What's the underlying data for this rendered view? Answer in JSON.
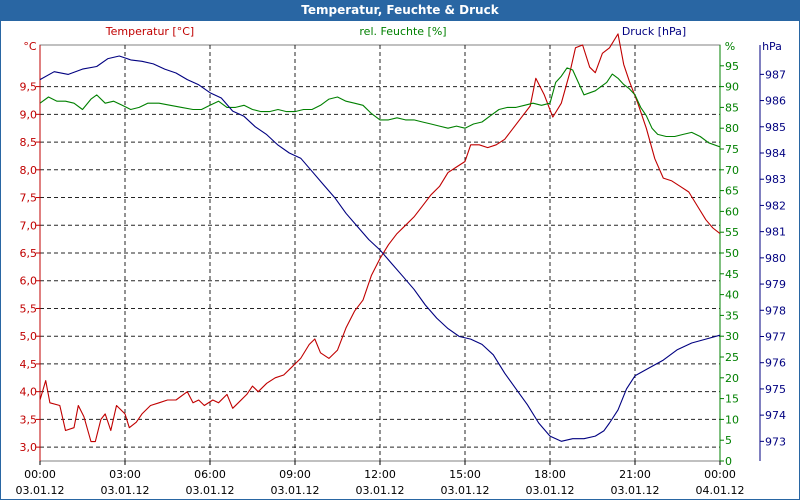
{
  "window_title": "Temperatur, Feuchte & Druck",
  "colors": {
    "temp": "#c00000",
    "hum": "#008000",
    "press": "#000080",
    "title_bg": "#2966a3"
  },
  "chart_data": {
    "type": "line",
    "title": "Temperatur, Feuchte & Druck",
    "axes": {
      "temp": {
        "label": "Temperatur [°C]",
        "unit": "°C",
        "ticks": [
          "3,0",
          "3,5",
          "4,0",
          "4,5",
          "5,0",
          "5,5",
          "6,0",
          "6,5",
          "7,0",
          "7,5",
          "8,0",
          "8,5",
          "9,0",
          "9,5"
        ],
        "range": [
          2.75,
          10.25
        ]
      },
      "hum": {
        "label": "rel. Feuchte [%]",
        "unit": "%",
        "ticks": [
          "0",
          "5",
          "10",
          "15",
          "20",
          "25",
          "30",
          "35",
          "40",
          "45",
          "50",
          "55",
          "60",
          "65",
          "70",
          "75",
          "80",
          "85",
          "90",
          "95"
        ],
        "range": [
          0,
          100
        ]
      },
      "press": {
        "label": "Druck [hPa]",
        "unit": "hPa",
        "ticks": [
          "973",
          "974",
          "975",
          "976",
          "977",
          "978",
          "979",
          "980",
          "981",
          "982",
          "983",
          "984",
          "985",
          "986",
          "987"
        ],
        "range": [
          972.25,
          988.12
        ]
      }
    },
    "x_ticks": [
      {
        "time": "00:00",
        "date": "03.01.12"
      },
      {
        "time": "03:00",
        "date": "03.01.12"
      },
      {
        "time": "06:00",
        "date": "03.01.12"
      },
      {
        "time": "09:00",
        "date": "03.01.12"
      },
      {
        "time": "12:00",
        "date": "03.01.12"
      },
      {
        "time": "15:00",
        "date": "03.01.12"
      },
      {
        "time": "18:00",
        "date": "03.01.12"
      },
      {
        "time": "21:00",
        "date": "03.01.12"
      },
      {
        "time": "00:00",
        "date": "04.01.12"
      }
    ],
    "x_range_hours": [
      0,
      24
    ],
    "series": [
      {
        "name": "Temperatur [°C]",
        "axis": "temp",
        "points": [
          [
            0,
            3.85
          ],
          [
            0.2,
            4.2
          ],
          [
            0.35,
            3.8
          ],
          [
            0.7,
            3.75
          ],
          [
            0.9,
            3.3
          ],
          [
            1.2,
            3.35
          ],
          [
            1.35,
            3.75
          ],
          [
            1.55,
            3.55
          ],
          [
            1.8,
            3.1
          ],
          [
            1.95,
            3.1
          ],
          [
            2.15,
            3.5
          ],
          [
            2.3,
            3.6
          ],
          [
            2.5,
            3.3
          ],
          [
            2.7,
            3.75
          ],
          [
            3.0,
            3.6
          ],
          [
            3.15,
            3.35
          ],
          [
            3.4,
            3.45
          ],
          [
            3.6,
            3.6
          ],
          [
            3.9,
            3.75
          ],
          [
            4.2,
            3.8
          ],
          [
            4.5,
            3.85
          ],
          [
            4.8,
            3.85
          ],
          [
            5.2,
            4.0
          ],
          [
            5.4,
            3.8
          ],
          [
            5.6,
            3.85
          ],
          [
            5.8,
            3.75
          ],
          [
            6.1,
            3.85
          ],
          [
            6.3,
            3.8
          ],
          [
            6.6,
            3.95
          ],
          [
            6.8,
            3.7
          ],
          [
            7.0,
            3.8
          ],
          [
            7.3,
            3.95
          ],
          [
            7.5,
            4.1
          ],
          [
            7.7,
            4.0
          ],
          [
            8.0,
            4.15
          ],
          [
            8.3,
            4.25
          ],
          [
            8.6,
            4.3
          ],
          [
            8.9,
            4.45
          ],
          [
            9.2,
            4.6
          ],
          [
            9.5,
            4.85
          ],
          [
            9.7,
            4.95
          ],
          [
            9.9,
            4.7
          ],
          [
            10.2,
            4.6
          ],
          [
            10.5,
            4.75
          ],
          [
            10.8,
            5.15
          ],
          [
            11.1,
            5.45
          ],
          [
            11.4,
            5.65
          ],
          [
            11.7,
            6.1
          ],
          [
            12.0,
            6.4
          ],
          [
            12.3,
            6.65
          ],
          [
            12.6,
            6.85
          ],
          [
            12.9,
            7.0
          ],
          [
            13.2,
            7.15
          ],
          [
            13.5,
            7.35
          ],
          [
            13.8,
            7.55
          ],
          [
            14.1,
            7.7
          ],
          [
            14.4,
            7.95
          ],
          [
            14.7,
            8.05
          ],
          [
            15.0,
            8.15
          ],
          [
            15.2,
            8.45
          ],
          [
            15.5,
            8.45
          ],
          [
            15.8,
            8.4
          ],
          [
            16.1,
            8.45
          ],
          [
            16.4,
            8.55
          ],
          [
            16.7,
            8.75
          ],
          [
            17.0,
            8.95
          ],
          [
            17.3,
            9.15
          ],
          [
            17.5,
            9.65
          ],
          [
            17.8,
            9.35
          ],
          [
            18.1,
            8.95
          ],
          [
            18.4,
            9.2
          ],
          [
            18.7,
            9.75
          ],
          [
            18.9,
            10.2
          ],
          [
            19.15,
            10.25
          ],
          [
            19.4,
            9.85
          ],
          [
            19.6,
            9.75
          ],
          [
            19.85,
            10.1
          ],
          [
            20.1,
            10.2
          ],
          [
            20.4,
            10.45
          ],
          [
            20.6,
            9.9
          ],
          [
            20.8,
            9.6
          ],
          [
            21.1,
            9.2
          ],
          [
            21.4,
            8.75
          ],
          [
            21.7,
            8.2
          ],
          [
            22.0,
            7.85
          ],
          [
            22.3,
            7.8
          ],
          [
            22.6,
            7.7
          ],
          [
            22.9,
            7.6
          ],
          [
            23.2,
            7.35
          ],
          [
            23.5,
            7.1
          ],
          [
            23.75,
            6.95
          ],
          [
            24.0,
            6.85
          ]
        ]
      },
      {
        "name": "rel. Feuchte [%]",
        "axis": "hum",
        "points": [
          [
            0,
            86
          ],
          [
            0.3,
            87.5
          ],
          [
            0.6,
            86.5
          ],
          [
            0.9,
            86.5
          ],
          [
            1.2,
            86
          ],
          [
            1.5,
            84.5
          ],
          [
            1.8,
            87
          ],
          [
            2.0,
            88
          ],
          [
            2.3,
            86
          ],
          [
            2.6,
            86.5
          ],
          [
            2.9,
            85.5
          ],
          [
            3.2,
            84.5
          ],
          [
            3.5,
            85
          ],
          [
            3.8,
            86
          ],
          [
            4.2,
            86
          ],
          [
            4.6,
            85.5
          ],
          [
            5.0,
            85
          ],
          [
            5.4,
            84.5
          ],
          [
            5.7,
            84.5
          ],
          [
            6.0,
            85.5
          ],
          [
            6.3,
            86.5
          ],
          [
            6.6,
            85
          ],
          [
            6.9,
            85
          ],
          [
            7.2,
            85.5
          ],
          [
            7.5,
            84.5
          ],
          [
            7.8,
            84
          ],
          [
            8.1,
            84
          ],
          [
            8.4,
            84.5
          ],
          [
            8.7,
            84
          ],
          [
            9.0,
            84
          ],
          [
            9.3,
            84.5
          ],
          [
            9.6,
            84.5
          ],
          [
            9.9,
            85.5
          ],
          [
            10.2,
            87
          ],
          [
            10.5,
            87.5
          ],
          [
            10.8,
            86.5
          ],
          [
            11.1,
            86
          ],
          [
            11.4,
            85.5
          ],
          [
            11.7,
            83.5
          ],
          [
            12.0,
            82
          ],
          [
            12.3,
            82
          ],
          [
            12.6,
            82.5
          ],
          [
            12.9,
            82
          ],
          [
            13.2,
            82
          ],
          [
            13.5,
            81.5
          ],
          [
            13.8,
            81
          ],
          [
            14.1,
            80.5
          ],
          [
            14.4,
            80
          ],
          [
            14.7,
            80.5
          ],
          [
            15.0,
            80
          ],
          [
            15.3,
            81
          ],
          [
            15.6,
            81.5
          ],
          [
            15.9,
            83
          ],
          [
            16.2,
            84.5
          ],
          [
            16.5,
            85
          ],
          [
            16.8,
            85
          ],
          [
            17.1,
            85.5
          ],
          [
            17.4,
            86
          ],
          [
            17.7,
            85.5
          ],
          [
            18.0,
            86
          ],
          [
            18.2,
            91
          ],
          [
            18.4,
            92.5
          ],
          [
            18.6,
            94.5
          ],
          [
            18.8,
            94
          ],
          [
            19.0,
            91
          ],
          [
            19.2,
            88
          ],
          [
            19.4,
            88.5
          ],
          [
            19.6,
            89
          ],
          [
            19.8,
            90
          ],
          [
            20.0,
            91
          ],
          [
            20.2,
            93
          ],
          [
            20.4,
            92
          ],
          [
            20.6,
            90.5
          ],
          [
            20.8,
            89.5
          ],
          [
            21.0,
            88
          ],
          [
            21.2,
            85
          ],
          [
            21.4,
            83
          ],
          [
            21.6,
            80
          ],
          [
            21.8,
            78.5
          ],
          [
            22.1,
            78
          ],
          [
            22.4,
            78
          ],
          [
            22.7,
            78.5
          ],
          [
            23.0,
            79
          ],
          [
            23.3,
            78
          ],
          [
            23.6,
            76.5
          ],
          [
            24.0,
            75.5
          ]
        ]
      },
      {
        "name": "Druck [hPa]",
        "axis": "press",
        "points": [
          [
            0,
            986.8
          ],
          [
            0.5,
            987.1
          ],
          [
            1.0,
            987.0
          ],
          [
            1.5,
            987.2
          ],
          [
            2.0,
            987.3
          ],
          [
            2.4,
            987.6
          ],
          [
            2.8,
            987.7
          ],
          [
            3.2,
            987.55
          ],
          [
            3.6,
            987.5
          ],
          [
            4.0,
            987.4
          ],
          [
            4.4,
            987.2
          ],
          [
            4.8,
            987.05
          ],
          [
            5.2,
            986.8
          ],
          [
            5.6,
            986.6
          ],
          [
            6.0,
            986.3
          ],
          [
            6.4,
            986.1
          ],
          [
            6.8,
            985.6
          ],
          [
            7.2,
            985.4
          ],
          [
            7.6,
            985.0
          ],
          [
            8.0,
            984.7
          ],
          [
            8.4,
            984.3
          ],
          [
            8.8,
            984.0
          ],
          [
            9.2,
            983.8
          ],
          [
            9.6,
            983.3
          ],
          [
            10.0,
            982.8
          ],
          [
            10.4,
            982.3
          ],
          [
            10.8,
            981.7
          ],
          [
            11.2,
            981.2
          ],
          [
            11.6,
            980.7
          ],
          [
            12.0,
            980.3
          ],
          [
            12.4,
            979.8
          ],
          [
            12.8,
            979.3
          ],
          [
            13.2,
            978.8
          ],
          [
            13.6,
            978.2
          ],
          [
            14.0,
            977.7
          ],
          [
            14.4,
            977.3
          ],
          [
            14.8,
            977.0
          ],
          [
            15.2,
            976.9
          ],
          [
            15.6,
            976.7
          ],
          [
            16.0,
            976.3
          ],
          [
            16.4,
            975.6
          ],
          [
            16.8,
            975.0
          ],
          [
            17.2,
            974.4
          ],
          [
            17.6,
            973.7
          ],
          [
            18.0,
            973.2
          ],
          [
            18.4,
            973.0
          ],
          [
            18.8,
            973.1
          ],
          [
            19.2,
            973.1
          ],
          [
            19.6,
            973.2
          ],
          [
            19.9,
            973.4
          ],
          [
            20.1,
            973.7
          ],
          [
            20.4,
            974.2
          ],
          [
            20.7,
            975.0
          ],
          [
            21.0,
            975.5
          ],
          [
            21.5,
            975.8
          ],
          [
            22.0,
            976.1
          ],
          [
            22.5,
            976.5
          ],
          [
            23.0,
            976.75
          ],
          [
            23.5,
            976.9
          ],
          [
            24.0,
            977.05
          ]
        ]
      }
    ]
  }
}
